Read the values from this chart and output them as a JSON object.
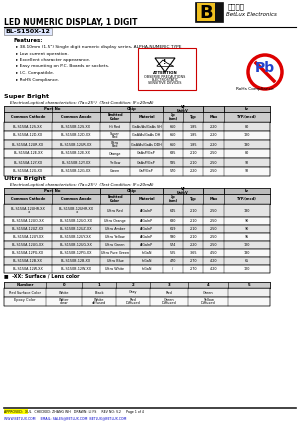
{
  "title_main": "LED NUMERIC DISPLAY, 1 DIGIT",
  "part_number": "BL-S150X-12",
  "features_title": "Features:",
  "features": [
    "38.10mm (1.5\") Single digit numeric display series, ALPHA-NUMERIC TYPE",
    "Low current operation.",
    "Excellent character appearance.",
    "Easy mounting on P.C. Boards or sockets.",
    "I.C. Compatible.",
    "RoHS Compliance."
  ],
  "super_bright_title": "Super Bright",
  "table1_title": "Electrical-optical characteristics: (Ta=25°)  (Test Condition: IF=20mA)",
  "table1_rows": [
    [
      "BL-S150A-12S-XX",
      "BL-S150B-12S-XX",
      "Hi Red",
      "GaAs/As/GaAs SH",
      "660",
      "1.85",
      "2.20",
      "80"
    ],
    [
      "BL-S150A-12D-XX",
      "BL-S150B-12D-XX",
      "Super\nRed",
      "GaAlAs/GaAs DH",
      "660",
      "1.85",
      "2.20",
      "120"
    ],
    [
      "BL-S150A-12UR-XX",
      "BL-S150B-12UR-XX",
      "Ultra\nRed",
      "GaAlAs/GaAs DDH",
      "660",
      "1.85",
      "2.20",
      "130"
    ],
    [
      "BL-S150A-12E-XX",
      "BL-S150B-12E-XX",
      "Orange",
      "GaAsP/GaP",
      "635",
      "2.10",
      "2.50",
      "80"
    ],
    [
      "BL-S150A-12Y-XX",
      "BL-S150B-12Y-XX",
      "Yellow",
      "GaAsP/GaP",
      "585",
      "2.10",
      "2.50",
      "92"
    ],
    [
      "BL-S150A-12G-XX",
      "BL-S150B-12G-XX",
      "Green",
      "GaP/GaP",
      "570",
      "2.20",
      "2.50",
      "92"
    ]
  ],
  "ultra_bright_title": "Ultra Bright",
  "table2_title": "Electrical-optical characteristics: (Ta=25°)  (Test Condition: IF=20mA)",
  "table2_rows": [
    [
      "BL-S150A-12UHR-XX\n  x",
      "BL-S150B-12UHR-XX\n  x",
      "Ultra Red",
      "AlGaInP",
      "645",
      "2.10",
      "2.50",
      "130"
    ],
    [
      "BL-S150A-12UO-XX",
      "BL-S150B-12UO-XX",
      "Ultra Orange",
      "AlGaInP",
      "630",
      "2.10",
      "2.50",
      "90"
    ],
    [
      "BL-S150A-12UZ-XX",
      "BL-S150B-12UZ-XX",
      "Ultra Amber",
      "AlGaInP",
      "619",
      "2.10",
      "2.50",
      "90"
    ],
    [
      "BL-S150A-12UY-XX",
      "BL-S150B-12UY-XX",
      "Ultra Yellow",
      "AlGaInP",
      "590",
      "2.10",
      "2.50",
      "95"
    ],
    [
      "BL-S150A-12UG-XX",
      "BL-S150B-12UG-XX",
      "Ultra Green",
      "AlGaInP",
      "574",
      "2.20",
      "2.50",
      "120"
    ],
    [
      "BL-S150A-12PG-XX",
      "BL-S150B-12PG-XX",
      "Ultra Pure Green",
      "InGaN",
      "525",
      "3.65",
      "4.50",
      "130"
    ],
    [
      "BL-S150A-12B-XX",
      "BL-S150B-12B-XX",
      "Ultra Blue",
      "InGaN",
      "470",
      "2.70",
      "4.20",
      "65"
    ],
    [
      "BL-S150A-12W-XX",
      "BL-S150B-12W-XX",
      "Ultra White",
      "InGaN",
      "/",
      "2.70",
      "4.20",
      "120"
    ]
  ],
  "note_title": "■  -XX: Surface / Lens color",
  "color_table_headers": [
    "Number",
    "0",
    "1",
    "2",
    "3",
    "4",
    "5"
  ],
  "color_table_row1": [
    "Red Surface Color",
    "White",
    "Black",
    "Gray",
    "Red",
    "Green",
    ""
  ],
  "color_table_row2_a": [
    "Epoxy Color",
    "Water",
    "White",
    "Red",
    "Green",
    "Yellow",
    ""
  ],
  "color_table_row2_b": [
    "",
    "clear",
    "diffused",
    "Diffused",
    "Diffused",
    "Diffused",
    ""
  ],
  "footer_line1": "APPROVED:  XUL   CHECKED: ZHANG WH   DRAWN: LI FS     REV NO: V.2     Page 1 of 4",
  "footer_line2": "WWW.BETLUX.COM     EMAIL: SALES@BETLUX.COM  BETLUX@BETLUX.COM",
  "attention_text": "ATTENTION",
  "bg_color": "#ffffff"
}
